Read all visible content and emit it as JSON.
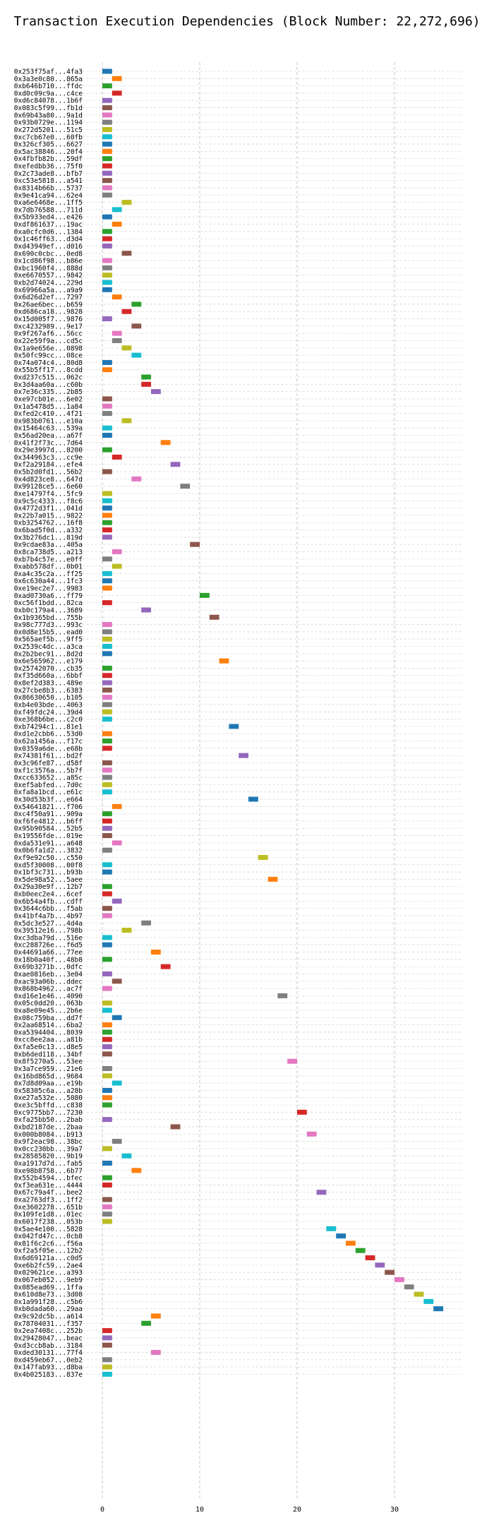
{
  "chart_data": {
    "type": "gantt",
    "title": "Transaction Execution Dependencies (Block Number: 22,272,696)",
    "xlabel": "",
    "ylabel": "",
    "xlim": [
      -2.5,
      37
    ],
    "xticks": [
      0,
      10,
      20,
      30
    ],
    "grid": "dashed",
    "bar_width": 1,
    "colors": [
      "#1f77b4",
      "#ff7f0e",
      "#2ca02c",
      "#d62728",
      "#9467bd",
      "#8c564b",
      "#e377c2",
      "#7f7f7f",
      "#bcbd22",
      "#17becf"
    ],
    "rows": [
      {
        "label": "0x253f75af...4fa3",
        "start": 0
      },
      {
        "label": "0x3a3e0c80...865a",
        "start": 1
      },
      {
        "label": "0xb646b710...ffdc",
        "start": 0
      },
      {
        "label": "0xd0c09c9a...c4ce",
        "start": 1
      },
      {
        "label": "0xd6c84078...1b6f",
        "start": 0
      },
      {
        "label": "0x083c5f99...fb1d",
        "start": 0
      },
      {
        "label": "0x69b43a80...9a1d",
        "start": 0
      },
      {
        "label": "0x93b0729e...1194",
        "start": 0
      },
      {
        "label": "0x272d5201...51c5",
        "start": 0
      },
      {
        "label": "0xc7cb67e0...60fb",
        "start": 0
      },
      {
        "label": "0x326cf305...6627",
        "start": 0
      },
      {
        "label": "0x5ac38846...20f4",
        "start": 0
      },
      {
        "label": "0x4fbfb82b...59df",
        "start": 0
      },
      {
        "label": "0xefedbb36...75f0",
        "start": 0
      },
      {
        "label": "0x2c73ade8...bfb7",
        "start": 0
      },
      {
        "label": "0xc53e5818...a541",
        "start": 0
      },
      {
        "label": "0x8314b66b...5737",
        "start": 0
      },
      {
        "label": "0x9e41ca94...62e4",
        "start": 0
      },
      {
        "label": "0xa6e6468e...1ff5",
        "start": 2
      },
      {
        "label": "0x7db76588...711d",
        "start": 1
      },
      {
        "label": "0x5b933ed4...e426",
        "start": 0
      },
      {
        "label": "0xdf861637...19ac",
        "start": 1
      },
      {
        "label": "0xa0cfc0d6...1384",
        "start": 0
      },
      {
        "label": "0x1c46ff63...d3d4",
        "start": 0
      },
      {
        "label": "0xd43949ef...d016",
        "start": 0
      },
      {
        "label": "0x690c0cbc...0ed8",
        "start": 2
      },
      {
        "label": "0x1cd86f98...b86e",
        "start": 0
      },
      {
        "label": "0xbc1960f4...888d",
        "start": 0
      },
      {
        "label": "0xe6670557...9842",
        "start": 0
      },
      {
        "label": "0xb2d74024...229d",
        "start": 0
      },
      {
        "label": "0x69966a5a...a9a9",
        "start": 0
      },
      {
        "label": "0x6d26d2ef...7297",
        "start": 1
      },
      {
        "label": "0x26ae6bec...b659",
        "start": 3
      },
      {
        "label": "0xd686ca18...9828",
        "start": 2
      },
      {
        "label": "0x15d005f7...9876",
        "start": 0
      },
      {
        "label": "0xc4232989...9e17",
        "start": 3
      },
      {
        "label": "0x9f267af6...56cc",
        "start": 1
      },
      {
        "label": "0x22e59f9a...cd5c",
        "start": 1
      },
      {
        "label": "0x1a9e656e...0898",
        "start": 2
      },
      {
        "label": "0x50fc99cc...08ce",
        "start": 3
      },
      {
        "label": "0x74a074c4...80d8",
        "start": 0
      },
      {
        "label": "0x55b5ff17...8cdd",
        "start": 0
      },
      {
        "label": "0xd237c515...062c",
        "start": 4
      },
      {
        "label": "0x3d4aa60a...c60b",
        "start": 4
      },
      {
        "label": "0x7e36c335...2b85",
        "start": 5
      },
      {
        "label": "0xe97cb01e...6e02",
        "start": 0
      },
      {
        "label": "0x1a5478d5...1a84",
        "start": 0
      },
      {
        "label": "0xfed2c410...4f21",
        "start": 0
      },
      {
        "label": "0x983b0761...e10a",
        "start": 2
      },
      {
        "label": "0x15464c63...539a",
        "start": 0
      },
      {
        "label": "0x56ad20ea...a67f",
        "start": 0
      },
      {
        "label": "0x41f2f73c...7d64",
        "start": 6
      },
      {
        "label": "0x29e3997d...8200",
        "start": 0
      },
      {
        "label": "0x344963c3...cc9e",
        "start": 1
      },
      {
        "label": "0xf2a29184...efe4",
        "start": 7
      },
      {
        "label": "0x5b2d0fd1...56b2",
        "start": 0
      },
      {
        "label": "0x4d823ce8...647d",
        "start": 3
      },
      {
        "label": "0x99128ce5...6e60",
        "start": 8
      },
      {
        "label": "0xe14797f4...5fc9",
        "start": 0
      },
      {
        "label": "0x9c5c4333...f8c6",
        "start": 0
      },
      {
        "label": "0x4772d3f1...041d",
        "start": 0
      },
      {
        "label": "0x22b7a015...9822",
        "start": 0
      },
      {
        "label": "0xb3254762...16f8",
        "start": 0
      },
      {
        "label": "0x6bad5f0d...a332",
        "start": 0
      },
      {
        "label": "0x3b276dc1...819d",
        "start": 0
      },
      {
        "label": "0x9cdae83a...405a",
        "start": 9
      },
      {
        "label": "0x8ca738d5...a213",
        "start": 1
      },
      {
        "label": "0xb7b4c57e...e0ff",
        "start": 0
      },
      {
        "label": "0xabb578df...0b01",
        "start": 1
      },
      {
        "label": "0xa4c35c2a...ff25",
        "start": 0
      },
      {
        "label": "0x6c630a44...1fc3",
        "start": 0
      },
      {
        "label": "0xe19ec2e7...9983",
        "start": 0
      },
      {
        "label": "0xad0730a6...ff79",
        "start": 10
      },
      {
        "label": "0xc56f1bdd...82ca",
        "start": 0
      },
      {
        "label": "0xb0c179a4...3689",
        "start": 4
      },
      {
        "label": "0x1b9365bd...755b",
        "start": 11
      },
      {
        "label": "0x98c777d3...993c",
        "start": 0
      },
      {
        "label": "0x0d8e15b5...ead0",
        "start": 0
      },
      {
        "label": "0x565aef5b...9ff5",
        "start": 0
      },
      {
        "label": "0x2539c4dc...a3ca",
        "start": 0
      },
      {
        "label": "0x2b2bec91...8d2d",
        "start": 0
      },
      {
        "label": "0x6e565962...e179",
        "start": 12
      },
      {
        "label": "0x25742070...cb35",
        "start": 0
      },
      {
        "label": "0xf35d660a...6bbf",
        "start": 0
      },
      {
        "label": "0x8ef2d383...489e",
        "start": 0
      },
      {
        "label": "0x27cbe8b3...6383",
        "start": 0
      },
      {
        "label": "0x86630650...b105",
        "start": 0
      },
      {
        "label": "0xb4e03bde...4063",
        "start": 0
      },
      {
        "label": "0xf49fdc24...39d4",
        "start": 0
      },
      {
        "label": "0xe368b6be...c2c0",
        "start": 0
      },
      {
        "label": "0xb74294c1...81e1",
        "start": 13
      },
      {
        "label": "0xd1e2cbb6...53d0",
        "start": 0
      },
      {
        "label": "0x62a1456a...f17c",
        "start": 0
      },
      {
        "label": "0x0359a6de...e68b",
        "start": 0
      },
      {
        "label": "0x74381f61...bd2f",
        "start": 14
      },
      {
        "label": "0x3c96fe87...d58f",
        "start": 0
      },
      {
        "label": "0xf1c3576a...5b7f",
        "start": 0
      },
      {
        "label": "0xcc633652...a85c",
        "start": 0
      },
      {
        "label": "0xef5abfed...7d0c",
        "start": 0
      },
      {
        "label": "0xfa8a1bcd...e61c",
        "start": 0
      },
      {
        "label": "0x30d53b3f...e664",
        "start": 15
      },
      {
        "label": "0x54641821...f706",
        "start": 1
      },
      {
        "label": "0xc4f50a91...909a",
        "start": 0
      },
      {
        "label": "0xf6fe4812...b6ff",
        "start": 0
      },
      {
        "label": "0x95b90584...52b5",
        "start": 0
      },
      {
        "label": "0x19556fde...019e",
        "start": 0
      },
      {
        "label": "0xda531e91...a648",
        "start": 1
      },
      {
        "label": "0x0b6fa1d2...3832",
        "start": 0
      },
      {
        "label": "0xf9e92c50...c550",
        "start": 16
      },
      {
        "label": "0xd5f30008...00f8",
        "start": 0
      },
      {
        "label": "0x1bf3c731...b93b",
        "start": 0
      },
      {
        "label": "0x5de98a52...5aee",
        "start": 17
      },
      {
        "label": "0x29a30e9f...12b7",
        "start": 0
      },
      {
        "label": "0xb0eec2e4...6cef",
        "start": 0
      },
      {
        "label": "0x6b54a4fb...cdff",
        "start": 1
      },
      {
        "label": "0x3644c6bb...f5ab",
        "start": 0
      },
      {
        "label": "0x41bf4a7b...4b97",
        "start": 0
      },
      {
        "label": "0x5dc3e527...4d4a",
        "start": 4
      },
      {
        "label": "0x39512e16...798b",
        "start": 2
      },
      {
        "label": "0xc3dba79d...516e",
        "start": 0
      },
      {
        "label": "0xc288726e...f6d5",
        "start": 0
      },
      {
        "label": "0x44691a66...77ee",
        "start": 5
      },
      {
        "label": "0x18b0a40f...48b8",
        "start": 0
      },
      {
        "label": "0x69b3271b...0dfc",
        "start": 6
      },
      {
        "label": "0xae0816eb...3e04",
        "start": 0
      },
      {
        "label": "0xac93a06b...ddec",
        "start": 1
      },
      {
        "label": "0x868b4962...ac7f",
        "start": 0
      },
      {
        "label": "0xd16e1e46...4090",
        "start": 18
      },
      {
        "label": "0x05c0dd20...063b",
        "start": 0
      },
      {
        "label": "0xa8e09e45...2b6e",
        "start": 0
      },
      {
        "label": "0x08c759ba...dd7f",
        "start": 1
      },
      {
        "label": "0x2aa68514...6ba2",
        "start": 0
      },
      {
        "label": "0xa5394404...8039",
        "start": 0
      },
      {
        "label": "0xcc8ee2aa...a81b",
        "start": 0
      },
      {
        "label": "0xfa5e0c13...d8e5",
        "start": 0
      },
      {
        "label": "0xb6ded118...34bf",
        "start": 0
      },
      {
        "label": "0x8f5270a5...53ee",
        "start": 19
      },
      {
        "label": "0x3a7ce959...21e6",
        "start": 0
      },
      {
        "label": "0x16bd865d...9684",
        "start": 0
      },
      {
        "label": "0x7d8d09aa...e19b",
        "start": 1
      },
      {
        "label": "0x58305c6a...a28b",
        "start": 0
      },
      {
        "label": "0xe27a532e...5080",
        "start": 0
      },
      {
        "label": "0xe3c5bffd...c838",
        "start": 0
      },
      {
        "label": "0xc9775bb7...7230",
        "start": 20
      },
      {
        "label": "0xfa25bb50...2bab",
        "start": 0
      },
      {
        "label": "0xbd2187de...2baa",
        "start": 7
      },
      {
        "label": "0x000b8084...b913",
        "start": 21
      },
      {
        "label": "0x9f2eac98...38bc",
        "start": 1
      },
      {
        "label": "0x0cc230bb...39a7",
        "start": 0
      },
      {
        "label": "0x28585820...9b19",
        "start": 2
      },
      {
        "label": "0xa1917d7d...fab5",
        "start": 0
      },
      {
        "label": "0xe98b8758...6b77",
        "start": 3
      },
      {
        "label": "0x552b4594...bfec",
        "start": 0
      },
      {
        "label": "0xf3ea631e...4444",
        "start": 0
      },
      {
        "label": "0x67c79a4f...bee2",
        "start": 22
      },
      {
        "label": "0xa2763df3...1ff2",
        "start": 0
      },
      {
        "label": "0xe3602278...651b",
        "start": 0
      },
      {
        "label": "0x109fe1d8...01ec",
        "start": 0
      },
      {
        "label": "0x6017f238...053b",
        "start": 0
      },
      {
        "label": "0x5ae4e100...5828",
        "start": 23
      },
      {
        "label": "0x042fd47c...0cb8",
        "start": 24
      },
      {
        "label": "0x81f6c2c6...f56a",
        "start": 25
      },
      {
        "label": "0xf2a5f05e...12b2",
        "start": 26
      },
      {
        "label": "0x6d69121a...c0d5",
        "start": 27
      },
      {
        "label": "0xe6b2fc59...2ae4",
        "start": 28
      },
      {
        "label": "0x029621ce...a393",
        "start": 29
      },
      {
        "label": "0x067eb052...9eb9",
        "start": 30
      },
      {
        "label": "0x085ead69...1ffa",
        "start": 31
      },
      {
        "label": "0x610d8e73...3d08",
        "start": 32
      },
      {
        "label": "0x1a991f28...c5b6",
        "start": 33
      },
      {
        "label": "0xb0dada60...29aa",
        "start": 34
      },
      {
        "label": "0x9c92dc5b...a614",
        "start": 5
      },
      {
        "label": "0x78704031...f357",
        "start": 4
      },
      {
        "label": "0x2ea7408c...252b",
        "start": 0
      },
      {
        "label": "0x29428047...beac",
        "start": 0
      },
      {
        "label": "0xd3ccb8ab...3184",
        "start": 0
      },
      {
        "label": "0xded30131...77f4",
        "start": 5
      },
      {
        "label": "0xd459eb67...0eb2",
        "start": 0
      },
      {
        "label": "0x147fab93...d8ba",
        "start": 0
      },
      {
        "label": "0x4b025183...837e",
        "start": 0
      }
    ]
  }
}
